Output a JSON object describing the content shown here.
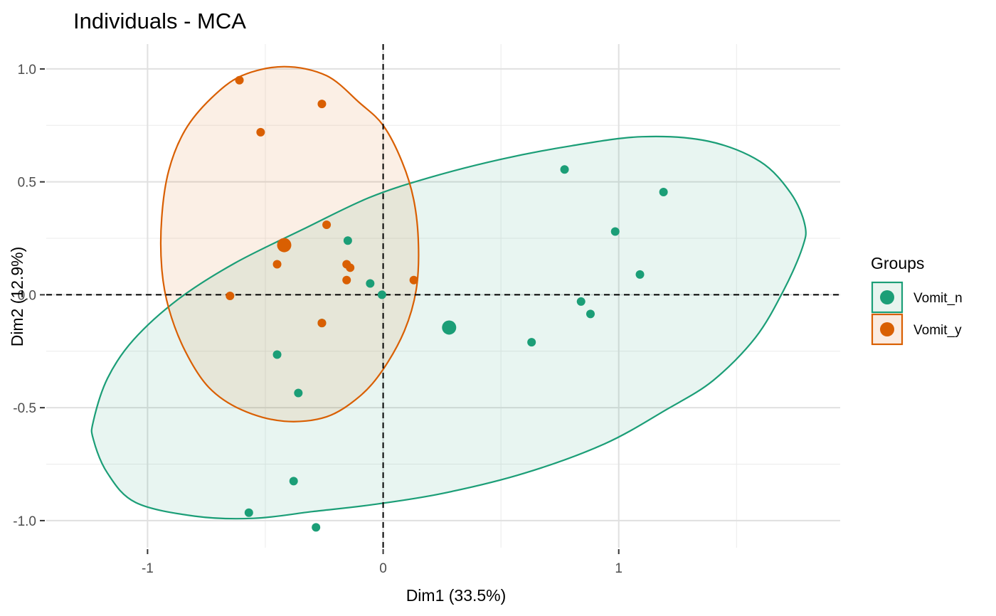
{
  "chart_data": {
    "type": "scatter",
    "title": "Individuals - MCA",
    "xlabel": "Dim1 (33.5%)",
    "ylabel": "Dim2 (12.9%)",
    "xlim": [
      -1.43,
      1.94
    ],
    "ylim": [
      -1.12,
      1.11
    ],
    "x_ticks": [
      -1,
      0,
      1
    ],
    "x_tick_labels": [
      "-1",
      "0",
      "1"
    ],
    "y_ticks": [
      1.0,
      0.5,
      0.0,
      -0.5,
      -1.0
    ],
    "y_tick_labels": [
      "1.0",
      "0.5",
      "0.0",
      "-0.5",
      "-1.0"
    ],
    "grid": true,
    "reference_lines": {
      "x": 0,
      "y": 0,
      "style": "dashed"
    },
    "legend": {
      "title": "Groups",
      "position": "right"
    },
    "series": [
      {
        "name": "Vomit_n",
        "color": "#1b9e77",
        "fill": "#e8f4ef",
        "points": [
          {
            "x": 0.77,
            "y": 0.555
          },
          {
            "x": 1.19,
            "y": 0.455
          },
          {
            "x": 0.985,
            "y": 0.28
          },
          {
            "x": 1.09,
            "y": 0.09
          },
          {
            "x": 0.84,
            "y": -0.03
          },
          {
            "x": 0.88,
            "y": -0.085
          },
          {
            "x": 0.63,
            "y": -0.21
          },
          {
            "x": -0.15,
            "y": 0.24
          },
          {
            "x": -0.055,
            "y": 0.05
          },
          {
            "x": -0.005,
            "y": 0.0
          },
          {
            "x": -0.26,
            "y": -0.125
          },
          {
            "x": -0.45,
            "y": -0.265
          },
          {
            "x": -0.36,
            "y": -0.435
          },
          {
            "x": -0.38,
            "y": -0.825
          },
          {
            "x": -0.57,
            "y": -0.965
          },
          {
            "x": -0.285,
            "y": -1.03
          }
        ],
        "centroid": {
          "x": 0.28,
          "y": -0.145
        },
        "ellipse": [
          [
            -1.23,
            -0.56
          ],
          [
            -1.17,
            -0.37
          ],
          [
            -1.06,
            -0.2
          ],
          [
            -0.87,
            -0.02
          ],
          [
            -0.63,
            0.14
          ],
          [
            -0.34,
            0.29
          ],
          [
            -0.06,
            0.43
          ],
          [
            0.2,
            0.52
          ],
          [
            0.5,
            0.6
          ],
          [
            0.8,
            0.66
          ],
          [
            1.1,
            0.7
          ],
          [
            1.38,
            0.68
          ],
          [
            1.6,
            0.59
          ],
          [
            1.73,
            0.45
          ],
          [
            1.79,
            0.31
          ],
          [
            1.78,
            0.21
          ],
          [
            1.7,
            0.02
          ],
          [
            1.58,
            -0.19
          ],
          [
            1.4,
            -0.38
          ],
          [
            1.2,
            -0.51
          ],
          [
            0.94,
            -0.66
          ],
          [
            0.6,
            -0.79
          ],
          [
            0.25,
            -0.88
          ],
          [
            -0.05,
            -0.93
          ],
          [
            -0.3,
            -0.96
          ],
          [
            -0.55,
            -0.99
          ],
          [
            -0.8,
            -0.98
          ],
          [
            -1.05,
            -0.92
          ],
          [
            -1.17,
            -0.79
          ],
          [
            -1.23,
            -0.64
          ]
        ]
      },
      {
        "name": "Vomit_y",
        "color": "#d95f02",
        "fill": "#fbebe1",
        "points": [
          {
            "x": -0.61,
            "y": 0.95
          },
          {
            "x": -0.26,
            "y": 0.845
          },
          {
            "x": -0.52,
            "y": 0.72
          },
          {
            "x": -0.24,
            "y": 0.31
          },
          {
            "x": -0.45,
            "y": 0.135
          },
          {
            "x": -0.155,
            "y": 0.135
          },
          {
            "x": -0.14,
            "y": 0.12
          },
          {
            "x": -0.155,
            "y": 0.065
          },
          {
            "x": 0.13,
            "y": 0.065
          },
          {
            "x": -0.65,
            "y": -0.005
          },
          {
            "x": -0.26,
            "y": -0.125
          }
        ],
        "centroid": {
          "x": -0.42,
          "y": 0.22
        },
        "ellipse": [
          [
            -0.42,
            1.01
          ],
          [
            -0.24,
            0.97
          ],
          [
            -0.1,
            0.85
          ],
          [
            0.0,
            0.75
          ],
          [
            0.08,
            0.59
          ],
          [
            0.13,
            0.42
          ],
          [
            0.15,
            0.22
          ],
          [
            0.14,
            0.02
          ],
          [
            0.09,
            -0.16
          ],
          [
            0.0,
            -0.33
          ],
          [
            -0.1,
            -0.45
          ],
          [
            -0.24,
            -0.54
          ],
          [
            -0.42,
            -0.56
          ],
          [
            -0.6,
            -0.51
          ],
          [
            -0.74,
            -0.41
          ],
          [
            -0.84,
            -0.25
          ],
          [
            -0.91,
            -0.06
          ],
          [
            -0.94,
            0.12
          ],
          [
            -0.94,
            0.34
          ],
          [
            -0.91,
            0.55
          ],
          [
            -0.84,
            0.73
          ],
          [
            -0.73,
            0.87
          ],
          [
            -0.6,
            0.97
          ]
        ]
      }
    ]
  }
}
